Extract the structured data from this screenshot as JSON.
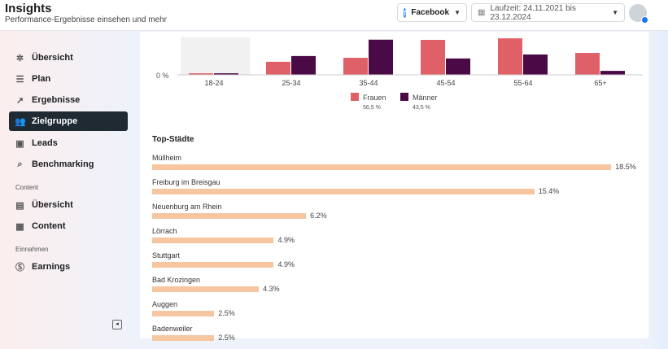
{
  "header": {
    "title": "Insights",
    "subtitle": "Performance-Ergebnisse einsehen und mehr",
    "platform": "Facebook",
    "date_range": "Laufzeit: 24.11.2021 bis 23.12.2024"
  },
  "sidebar": {
    "items": [
      {
        "label": "Übersicht",
        "icon": "network-icon"
      },
      {
        "label": "Plan",
        "icon": "list-icon"
      },
      {
        "label": "Ergebnisse",
        "icon": "trend-icon"
      },
      {
        "label": "Zielgruppe",
        "icon": "people-icon",
        "active": true
      },
      {
        "label": "Leads",
        "icon": "contact-card-icon"
      },
      {
        "label": "Benchmarking",
        "icon": "search-chart-icon"
      }
    ],
    "content_section": "Content",
    "content_items": [
      {
        "label": "Übersicht",
        "icon": "gallery-icon"
      },
      {
        "label": "Content",
        "icon": "grid-icon"
      }
    ],
    "earnings_section": "Einnahmen",
    "earnings_items": [
      {
        "label": "Earnings",
        "icon": "dollar-icon"
      }
    ]
  },
  "chart_data": [
    {
      "type": "bar",
      "categories": [
        "18-24",
        "25-34",
        "35-44",
        "45-54",
        "55-64",
        "65+"
      ],
      "y_tick": "0 %",
      "series": [
        {
          "name": "Frauen",
          "total": "56,5 %",
          "color": "#e06068",
          "values": [
            0.7,
            5.9,
            7.7,
            15.8,
            16.5,
            9.9
          ]
        },
        {
          "name": "Männer",
          "total": "43,5 %",
          "color": "#4a0a45",
          "values": [
            0.7,
            8.5,
            15.9,
            7.4,
            9.2,
            1.8
          ]
        }
      ]
    },
    {
      "type": "bar",
      "orientation": "horizontal",
      "title": "Top-Städte",
      "color": "#f6c6a0",
      "categories": [
        "Müllheim",
        "Freiburg im Breisgau",
        "Neuenburg am Rhein",
        "Lörrach",
        "Stuttgart",
        "Bad Krozingen",
        "Auggen",
        "Badenweiler"
      ],
      "values": [
        18.5,
        15.4,
        6.2,
        4.9,
        4.9,
        4.3,
        2.5,
        2.5
      ],
      "labels": [
        "18.5%",
        "15.4%",
        "6.2%",
        "4.9%",
        "4.9%",
        "4.3%",
        "2.5%",
        "2.5%"
      ]
    }
  ]
}
